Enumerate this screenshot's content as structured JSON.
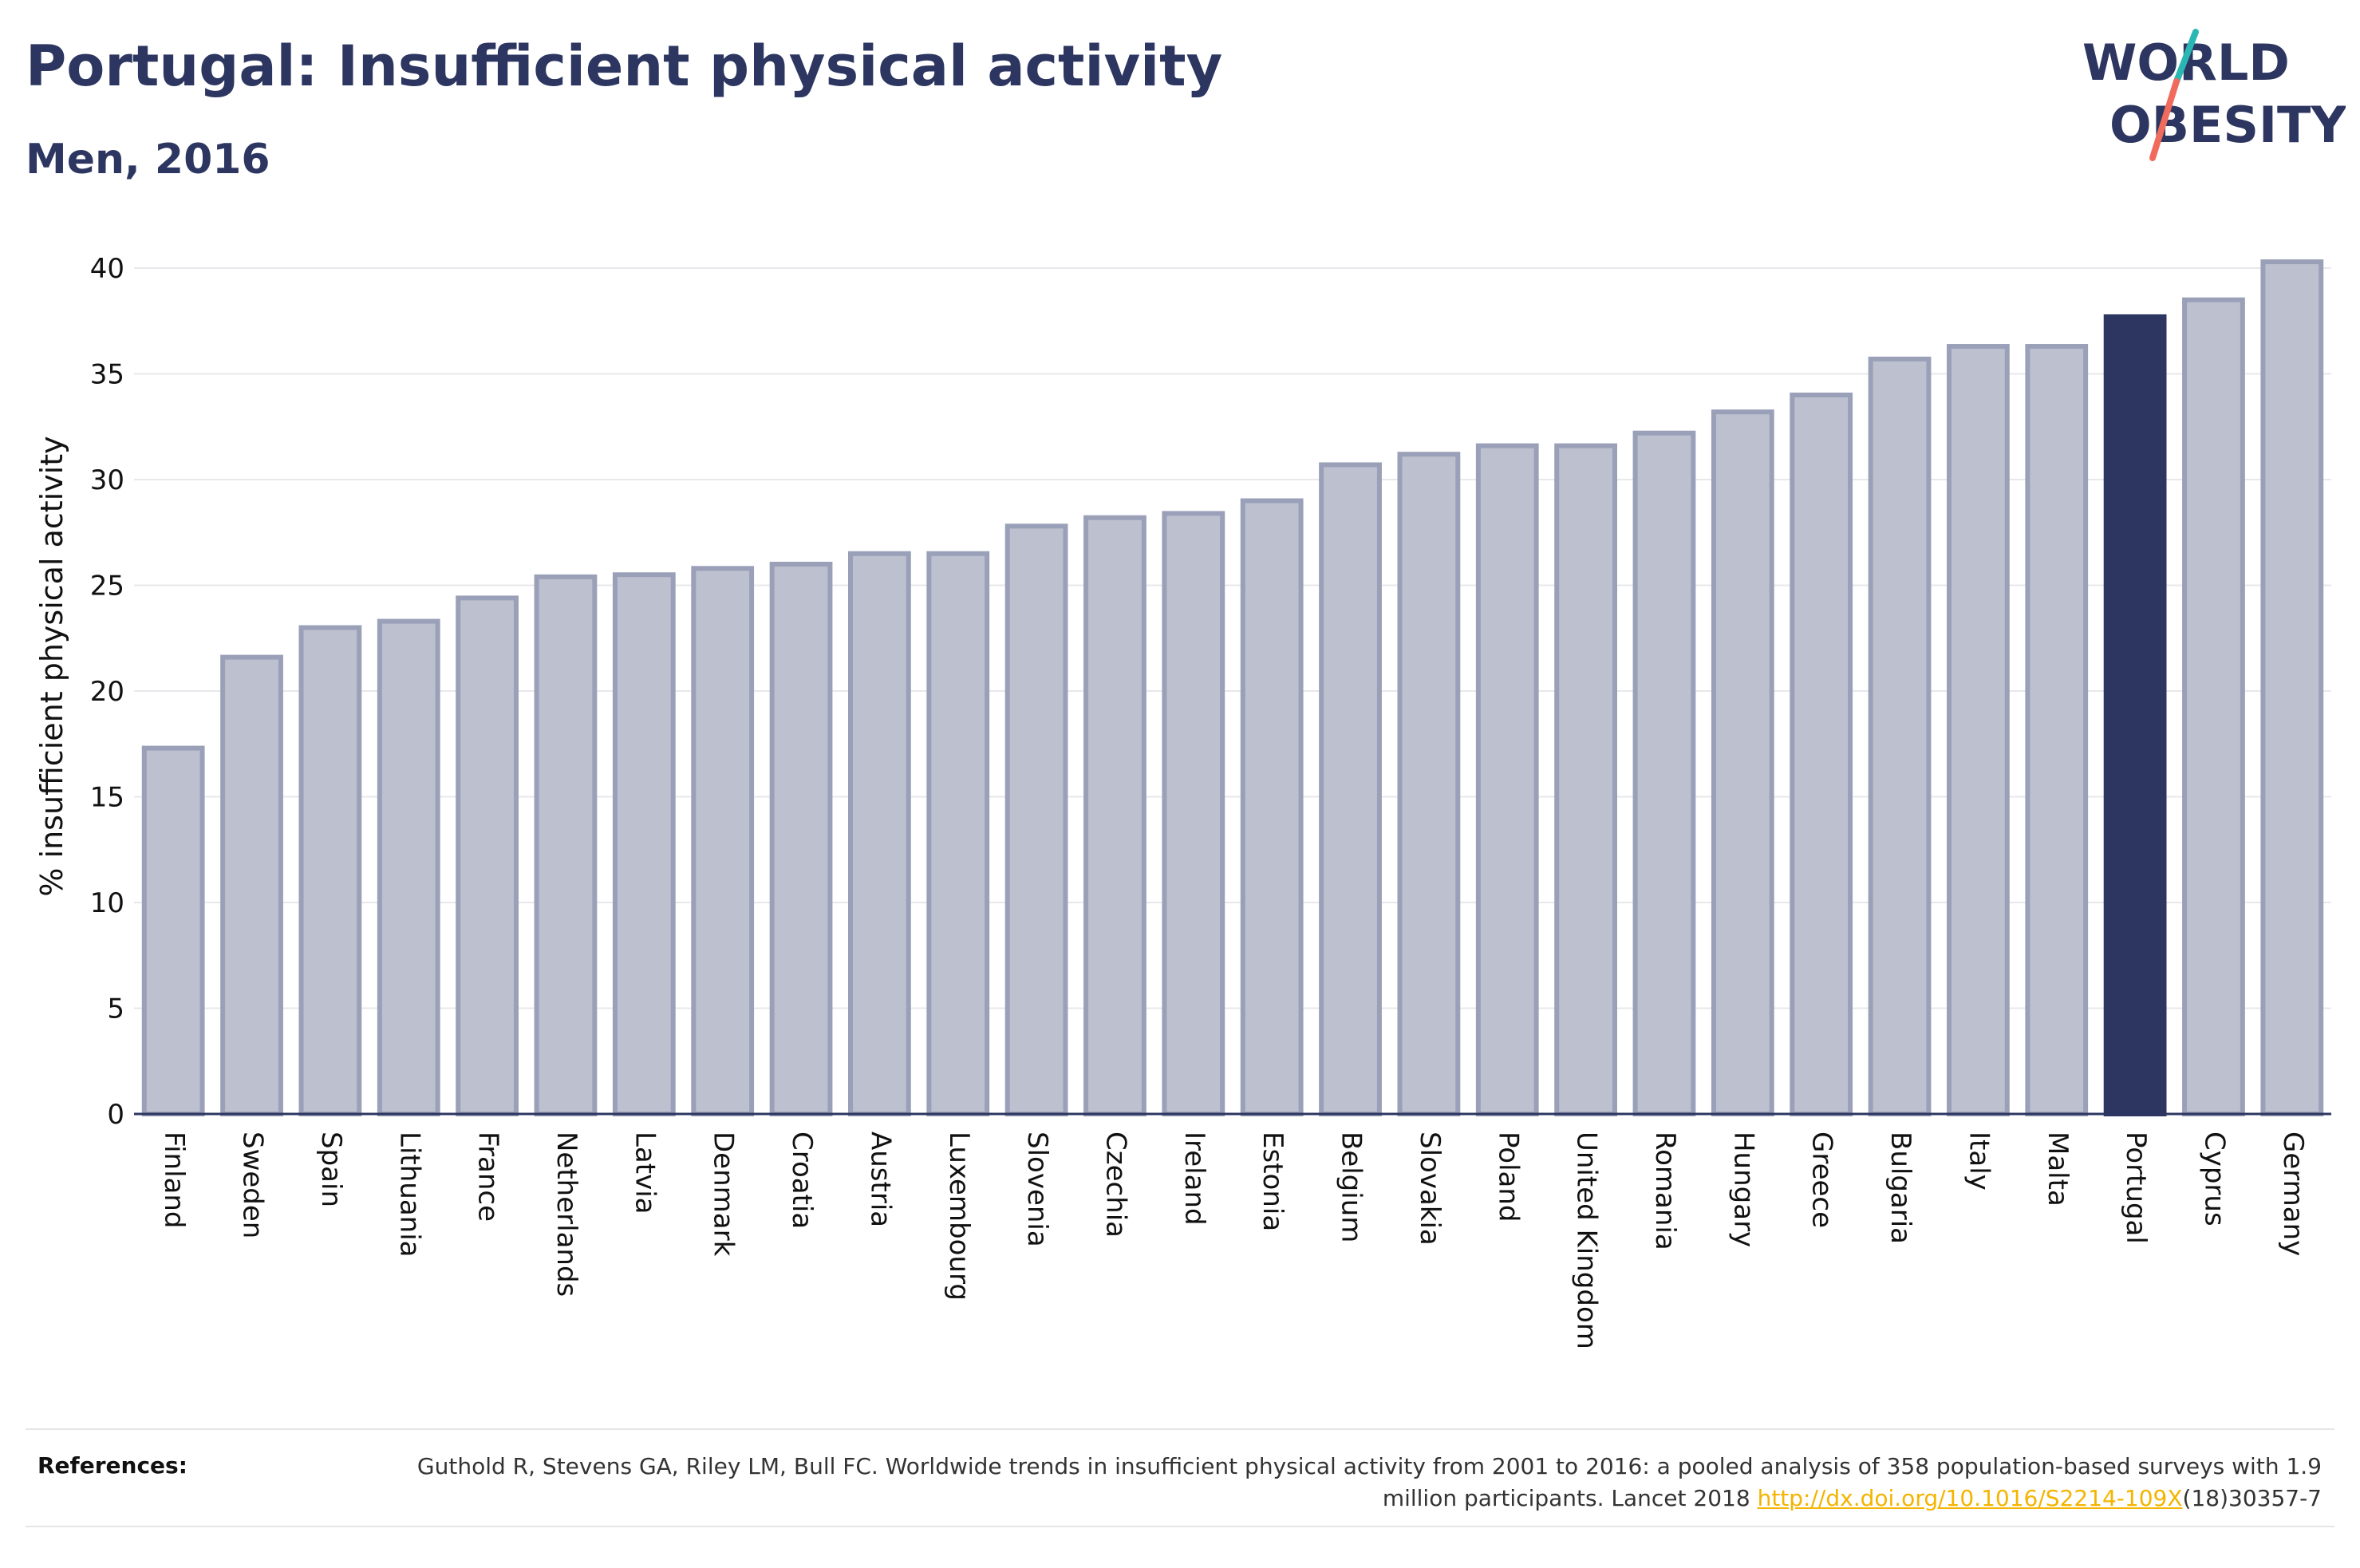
{
  "header": {
    "title": "Portugal: Insufficient physical activity",
    "subtitle": "Men, 2016"
  },
  "logo": {
    "line1": "WORLD",
    "line2": "OBESITY",
    "slash_colors": [
      "#2ab7b4",
      "#f06b5b"
    ],
    "text_color": "#2c3660"
  },
  "colors": {
    "bar_default_fill": "#bcc0cf",
    "bar_default_stroke": "#9aa0b8",
    "bar_highlight": "#2c3660",
    "grid": "#e8e8ec",
    "axis": "#2c3660"
  },
  "chart_data": {
    "type": "bar",
    "title": "Portugal: Insufficient physical activity",
    "subtitle": "Men, 2016",
    "xlabel": "",
    "ylabel": "% insufficient physical activity",
    "ylim": [
      0,
      40
    ],
    "yticks": [
      0,
      5,
      10,
      15,
      20,
      25,
      30,
      35,
      40
    ],
    "grid": true,
    "highlight": "Portugal",
    "categories": [
      "Finland",
      "Sweden",
      "Spain",
      "Lithuania",
      "France",
      "Netherlands",
      "Latvia",
      "Denmark",
      "Croatia",
      "Austria",
      "Luxembourg",
      "Slovenia",
      "Czechia",
      "Ireland",
      "Estonia",
      "Belgium",
      "Slovakia",
      "Poland",
      "United Kingdom",
      "Romania",
      "Hungary",
      "Greece",
      "Bulgaria",
      "Italy",
      "Malta",
      "Portugal",
      "Cyprus",
      "Germany"
    ],
    "values": [
      17.3,
      21.6,
      23.0,
      23.3,
      24.4,
      25.4,
      25.5,
      25.8,
      26.0,
      26.5,
      26.5,
      27.8,
      28.2,
      28.4,
      29.0,
      30.7,
      31.2,
      31.6,
      31.6,
      32.2,
      33.2,
      34.0,
      35.7,
      36.3,
      36.3,
      37.7,
      38.5,
      40.3
    ]
  },
  "references": {
    "label": "References:",
    "text_before_link": "Guthold R, Stevens GA, Riley LM, Bull FC. Worldwide trends in insufficient physical activity from 2001 to 2016: a pooled analysis of 358 population-based surveys with 1.9 million participants. Lancet 2018 ",
    "link_text": "http://dx.doi.org/10.1016/S2214-109X",
    "text_after_link": "(18)30357-7"
  }
}
